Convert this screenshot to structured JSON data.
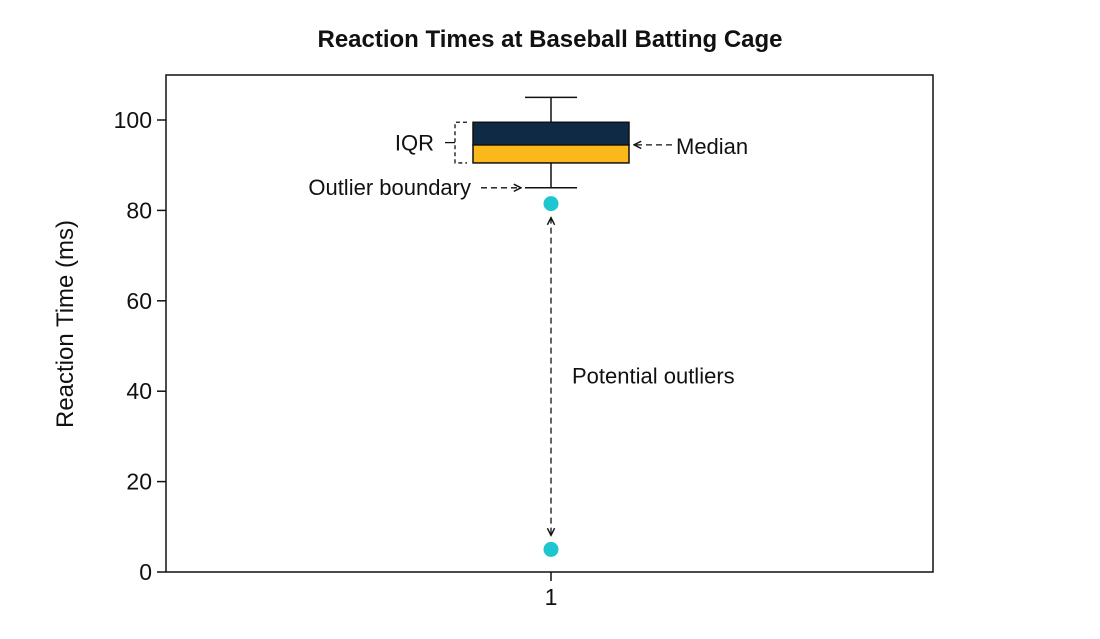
{
  "chart_data": {
    "type": "box",
    "title": "Reaction Times at Baseball Batting Cage",
    "xlabel": "",
    "ylabel": "Reaction Time (ms)",
    "ylim": [
      0,
      110
    ],
    "yticks": [
      0,
      20,
      40,
      60,
      80,
      100
    ],
    "categories": [
      "1"
    ],
    "grid": false,
    "box": {
      "whisker_low": 85,
      "q1": 90.5,
      "median": 94.5,
      "q3": 99.5,
      "whisker_high": 105,
      "outliers": [
        81.5,
        5
      ]
    },
    "colors": {
      "upper_box": "#0f2a45",
      "lower_box": "#fbb81c",
      "outlier": "#1ec6cf",
      "axis": "#111111"
    },
    "annotations": {
      "iqr": "IQR",
      "median": "Median",
      "outlier_boundary": "Outlier boundary",
      "potential_outliers": "Potential outliers"
    }
  }
}
